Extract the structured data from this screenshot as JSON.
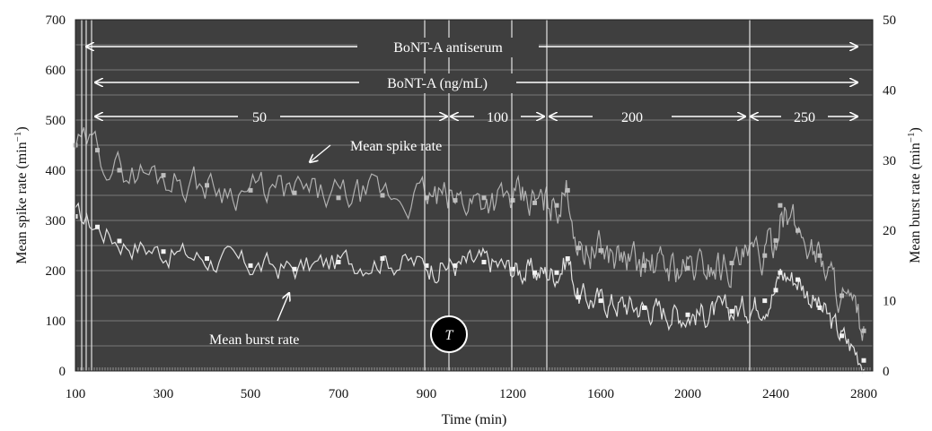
{
  "chart_data": {
    "type": "line",
    "title": "",
    "xlabel": "Time (min)",
    "ylabel_left": "Mean spike rate (min",
    "ylabel_left_sup": "−1",
    "ylabel_left_close": ")",
    "ylabel_right": "Mean burst rate (min",
    "ylabel_right_sup": "−1",
    "ylabel_right_close": ")",
    "x_ticks": [
      "100",
      "300",
      "500",
      "700",
      "900",
      "1200",
      "1600",
      "2000",
      "2400",
      "2800"
    ],
    "y_left_ticks": [
      "0",
      "100",
      "200",
      "300",
      "400",
      "500",
      "600",
      "700"
    ],
    "y_right_ticks": [
      "0",
      "10",
      "20",
      "30",
      "40",
      "50"
    ],
    "ylim_left": [
      0,
      700
    ],
    "ylim_right": [
      0,
      50
    ],
    "grid": true,
    "background_color": "#3f3f3f",
    "series": [
      {
        "name": "Mean spike rate",
        "axis": "left",
        "color": "#bdbdbd",
        "x": [
          100,
          150,
          200,
          300,
          400,
          500,
          600,
          700,
          800,
          900,
          1000,
          1100,
          1200,
          1300,
          1400,
          1450,
          1500,
          1600,
          1800,
          2000,
          2200,
          2350,
          2400,
          2420,
          2500,
          2600,
          2700,
          2800
        ],
        "values": [
          450,
          440,
          400,
          390,
          370,
          360,
          355,
          345,
          350,
          345,
          340,
          345,
          340,
          335,
          330,
          360,
          245,
          240,
          210,
          205,
          215,
          230,
          260,
          330,
          280,
          230,
          150,
          80
        ]
      },
      {
        "name": "Mean burst rate",
        "axis": "right",
        "color": "#f2f2f2",
        "x": [
          100,
          150,
          200,
          300,
          400,
          500,
          600,
          700,
          800,
          900,
          1000,
          1100,
          1200,
          1300,
          1400,
          1450,
          1500,
          1600,
          1800,
          2000,
          2200,
          2350,
          2400,
          2420,
          2500,
          2600,
          2700,
          2800
        ],
        "values": [
          22,
          20.5,
          18.5,
          17,
          16,
          15,
          14.5,
          15.5,
          16,
          15,
          15,
          15.5,
          14.5,
          14,
          14,
          16,
          10.5,
          10,
          9,
          8,
          8.5,
          10,
          11.5,
          14,
          13,
          9,
          5,
          1.5
        ]
      }
    ],
    "annotations": {
      "antiserum": "BoNT-A  antiserum",
      "bont": "BoNT-A (ng/mL)",
      "conc_50": "50",
      "conc_100": "100",
      "conc_200": "200",
      "conc_250": "250",
      "spike_label": "Mean spike rate",
      "burst_label": "Mean burst rate",
      "marker": "T"
    }
  }
}
